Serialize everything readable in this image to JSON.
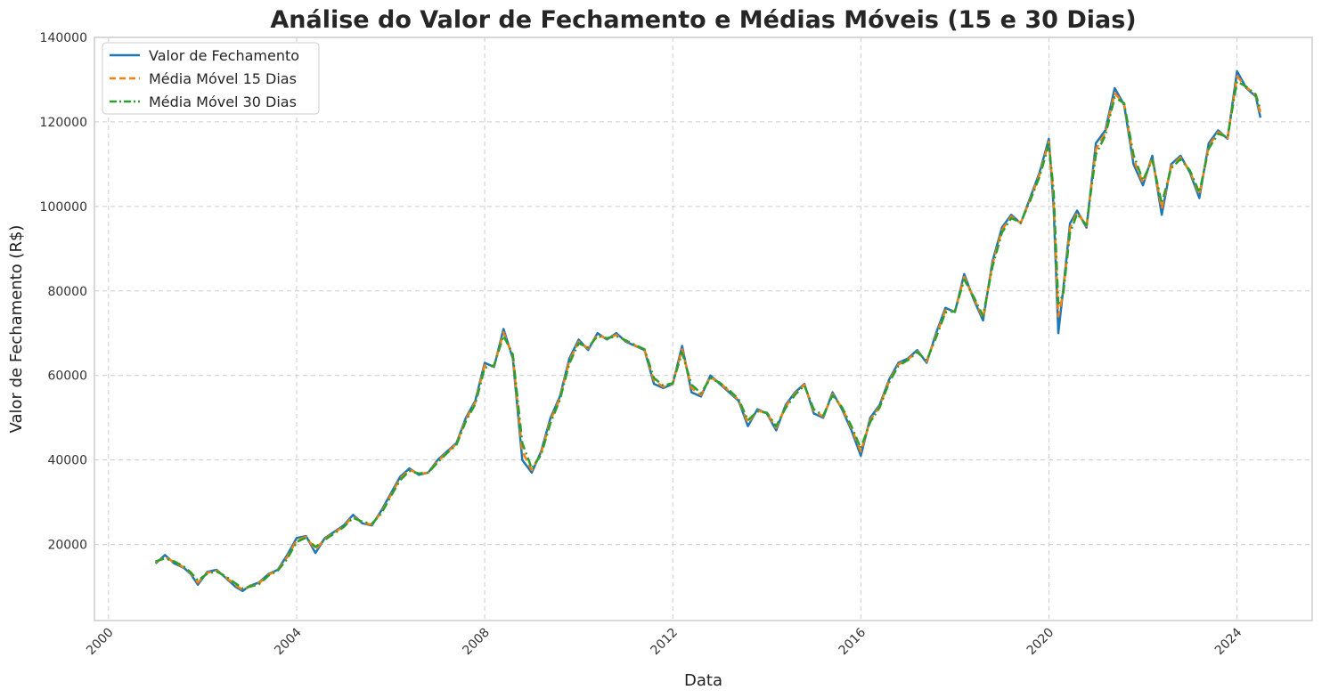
{
  "chart_data": {
    "type": "line",
    "title": "Análise do Valor de Fechamento e Médias Móveis (15 e 30 Dias)",
    "xlabel": "Data",
    "ylabel": "Valor de Fechamento (R$)",
    "xlim": [
      1999.7,
      2025.6
    ],
    "ylim": [
      2000,
      140000
    ],
    "x_ticks": [
      2000,
      2004,
      2008,
      2012,
      2016,
      2020,
      2024
    ],
    "x_tick_labels": [
      "2000",
      "2004",
      "2008",
      "2012",
      "2016",
      "2020",
      "2024"
    ],
    "y_ticks": [
      20000,
      40000,
      60000,
      80000,
      100000,
      120000,
      140000
    ],
    "y_tick_labels": [
      "20000",
      "40000",
      "60000",
      "80000",
      "100000",
      "120000",
      "140000"
    ],
    "grid": true,
    "legend_position": "top-left",
    "series": [
      {
        "name": "Valor de Fechamento",
        "color": "#1f77b4",
        "style": "solid"
      },
      {
        "name": "Média Móvel 15 Dias",
        "color": "#ff7f0e",
        "style": "dashed"
      },
      {
        "name": "Média Móvel 30 Dias",
        "color": "#2ca02c",
        "style": "dashdot"
      }
    ],
    "x": [
      2001.0,
      2001.2,
      2001.4,
      2001.6,
      2001.75,
      2001.9,
      2002.1,
      2002.3,
      2002.5,
      2002.7,
      2002.85,
      2003.0,
      2003.2,
      2003.4,
      2003.6,
      2003.8,
      2004.0,
      2004.2,
      2004.4,
      2004.6,
      2004.8,
      2005.0,
      2005.2,
      2005.4,
      2005.6,
      2005.8,
      2006.0,
      2006.2,
      2006.4,
      2006.6,
      2006.8,
      2007.0,
      2007.2,
      2007.4,
      2007.6,
      2007.8,
      2008.0,
      2008.2,
      2008.4,
      2008.6,
      2008.8,
      2009.0,
      2009.2,
      2009.4,
      2009.6,
      2009.8,
      2010.0,
      2010.2,
      2010.4,
      2010.6,
      2010.8,
      2011.0,
      2011.2,
      2011.4,
      2011.6,
      2011.8,
      2012.0,
      2012.2,
      2012.4,
      2012.6,
      2012.8,
      2013.0,
      2013.2,
      2013.4,
      2013.6,
      2013.8,
      2014.0,
      2014.2,
      2014.4,
      2014.6,
      2014.8,
      2015.0,
      2015.2,
      2015.4,
      2015.6,
      2015.8,
      2016.0,
      2016.2,
      2016.4,
      2016.6,
      2016.8,
      2017.0,
      2017.2,
      2017.4,
      2017.6,
      2017.8,
      2018.0,
      2018.2,
      2018.4,
      2018.6,
      2018.8,
      2019.0,
      2019.2,
      2019.4,
      2019.6,
      2019.8,
      2020.0,
      2020.1,
      2020.2,
      2020.3,
      2020.45,
      2020.6,
      2020.8,
      2021.0,
      2021.2,
      2021.4,
      2021.6,
      2021.8,
      2022.0,
      2022.2,
      2022.4,
      2022.6,
      2022.8,
      2023.0,
      2023.2,
      2023.4,
      2023.6,
      2023.8,
      2024.0,
      2024.2,
      2024.4,
      2024.5
    ],
    "close": [
      15500,
      17500,
      15500,
      14500,
      13000,
      10500,
      13500,
      14000,
      12000,
      10000,
      9000,
      10200,
      11000,
      13000,
      14000,
      17500,
      21500,
      22000,
      18000,
      21500,
      23000,
      24500,
      27000,
      25000,
      24500,
      28000,
      32000,
      36000,
      38000,
      36500,
      37000,
      40000,
      42000,
      44000,
      50000,
      54000,
      63000,
      62000,
      71000,
      64000,
      40000,
      37000,
      42000,
      50000,
      55000,
      64000,
      68500,
      66000,
      70000,
      68500,
      70000,
      68000,
      67000,
      66000,
      58000,
      57000,
      58000,
      67000,
      56000,
      55000,
      60000,
      58000,
      56000,
      54000,
      48000,
      52000,
      51000,
      47000,
      53000,
      56000,
      58000,
      51000,
      50000,
      56000,
      52000,
      47000,
      41000,
      50000,
      53000,
      59000,
      63000,
      64000,
      66000,
      63000,
      70000,
      76000,
      75000,
      84000,
      78000,
      73000,
      87000,
      95000,
      98000,
      96000,
      102000,
      108000,
      116000,
      100000,
      70000,
      80000,
      96000,
      99000,
      95000,
      115000,
      118000,
      128000,
      124000,
      110000,
      105000,
      112000,
      98000,
      110000,
      112000,
      108000,
      102000,
      115000,
      118000,
      116000,
      132000,
      128000,
      126000,
      121000
    ],
    "ma15": [
      15800,
      17000,
      15800,
      14600,
      13200,
      11000,
      13300,
      13800,
      12200,
      10400,
      9300,
      10100,
      10800,
      12800,
      13900,
      17000,
      21000,
      21800,
      18800,
      21300,
      22800,
      24300,
      26600,
      25200,
      24700,
      27600,
      31600,
      35600,
      37700,
      36700,
      37000,
      39700,
      41800,
      43800,
      49600,
      53600,
      62400,
      62200,
      70200,
      64600,
      42000,
      37600,
      41600,
      49400,
      54600,
      63400,
      68000,
      66400,
      69600,
      68700,
      69600,
      68200,
      67100,
      66100,
      58800,
      57300,
      58100,
      66200,
      57000,
      55400,
      59600,
      58200,
      56300,
      54200,
      48800,
      51700,
      51100,
      47600,
      52600,
      55700,
      57800,
      51600,
      50300,
      55600,
      52300,
      47600,
      42000,
      49400,
      52700,
      58600,
      62600,
      63800,
      65700,
      63300,
      69400,
      75400,
      75100,
      83300,
      78400,
      73600,
      86300,
      94400,
      97600,
      96100,
      101600,
      107500,
      115300,
      102000,
      74000,
      79400,
      94800,
      98600,
      95400,
      113500,
      117400,
      126800,
      124300,
      111200,
      105600,
      111500,
      99500,
      109500,
      111600,
      108300,
      102800,
      114300,
      117600,
      116200,
      130800,
      128200,
      126300,
      122000
    ],
    "ma30": [
      16000,
      16700,
      16000,
      14800,
      13400,
      11500,
      13100,
      13600,
      12400,
      10800,
      9600,
      10000,
      10600,
      12600,
      13800,
      16600,
      20600,
      21600,
      19400,
      21100,
      22600,
      24100,
      26300,
      25400,
      24900,
      27300,
      31300,
      35200,
      37400,
      36800,
      37000,
      39400,
      41600,
      43600,
      49200,
      53200,
      61800,
      62400,
      69400,
      65000,
      44000,
      38000,
      41200,
      48800,
      54200,
      62800,
      67600,
      66600,
      69300,
      68800,
      69300,
      68300,
      67200,
      66200,
      59400,
      57600,
      58200,
      65400,
      57800,
      55800,
      59300,
      58300,
      56500,
      54400,
      49400,
      51500,
      51200,
      48000,
      52300,
      55400,
      57600,
      52000,
      50500,
      55300,
      52500,
      48000,
      42800,
      49000,
      52400,
      58300,
      62300,
      63600,
      65500,
      63500,
      69000,
      74900,
      75200,
      82700,
      78600,
      74100,
      85700,
      93800,
      97200,
      96200,
      101300,
      107000,
      114700,
      104000,
      77000,
      79000,
      93800,
      98200,
      95600,
      112300,
      116800,
      125800,
      124400,
      112200,
      106200,
      111000,
      100700,
      109000,
      111200,
      108500,
      103300,
      113700,
      117200,
      116400,
      129600,
      128300,
      126500,
      122800
    ]
  }
}
